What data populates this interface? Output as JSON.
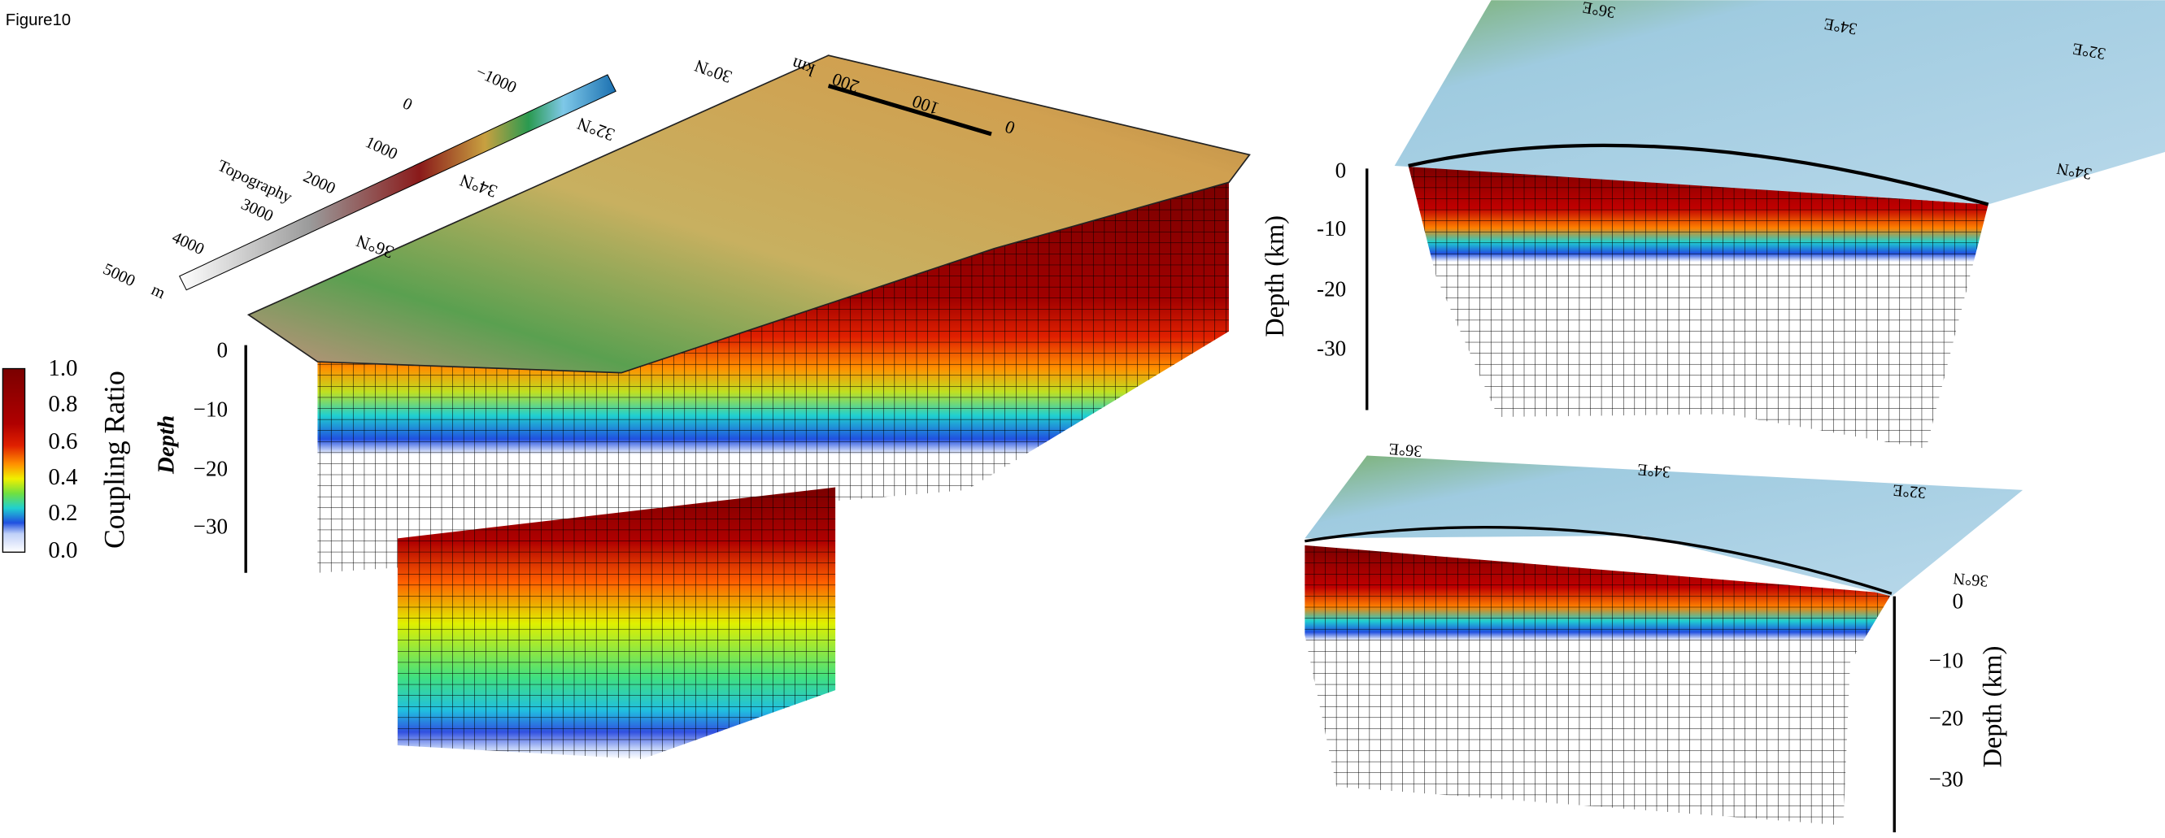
{
  "figure_label": "Figure10",
  "coupling_colorbar": {
    "title": "Coupling Ratio",
    "ticks": [
      "1.0",
      "0.8",
      "0.6",
      "0.4",
      "0.2",
      "0.0"
    ]
  },
  "topography_colorbar": {
    "title": "Topography",
    "unit": "m",
    "ticks": [
      "5000",
      "4000",
      "3000",
      "2000",
      "1000",
      "0",
      "−1000"
    ]
  },
  "main_view": {
    "depth_label": "Depth",
    "depth_ticks": [
      "0",
      "−10",
      "−20",
      "−30"
    ],
    "latitude_labels": [
      "30°N",
      "32°N",
      "34°N",
      "36°N"
    ],
    "scale_bar": {
      "unit": "km",
      "ticks": [
        "0",
        "100",
        "200"
      ]
    }
  },
  "top_right_view": {
    "depth_label": "Depth (km)",
    "depth_ticks": [
      "0",
      "-10",
      "-20",
      "-30"
    ],
    "longitude_labels": [
      "36°E",
      "34°E",
      "32°E"
    ],
    "latitude_labels": [
      "34°N"
    ]
  },
  "bottom_right_view": {
    "depth_label": "Depth (km)",
    "depth_ticks": [
      "0",
      "−10",
      "−20",
      "−30"
    ],
    "longitude_labels": [
      "36°E",
      "34°E",
      "32°E"
    ],
    "latitude_labels": [
      "36°N"
    ]
  }
}
